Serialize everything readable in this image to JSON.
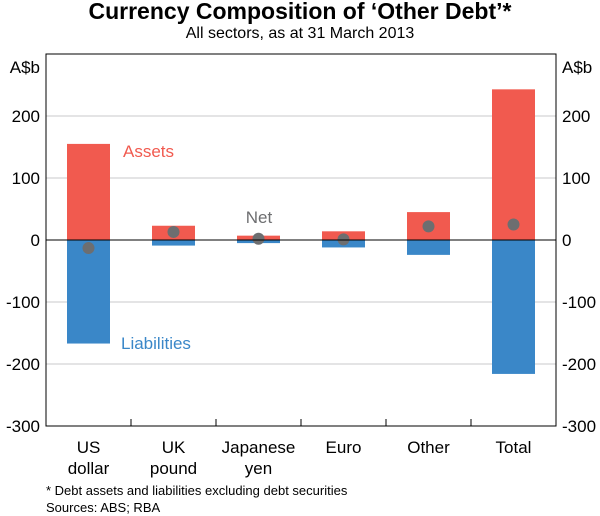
{
  "chart_data": {
    "type": "bar",
    "title": "Currency Composition of ‘Other Debt’*",
    "subtitle": "All sectors, as at 31 March 2013",
    "ylabel_left": "A$b",
    "ylabel_right": "A$b",
    "ylim": [
      -300,
      300
    ],
    "yticks": [
      -300,
      -200,
      -100,
      0,
      100,
      200
    ],
    "grid": true,
    "categories": [
      [
        "US",
        "dollar"
      ],
      [
        "UK",
        "pound"
      ],
      [
        "Japanese",
        "yen"
      ],
      [
        "Euro"
      ],
      [
        "Other"
      ],
      [
        "Total"
      ]
    ],
    "series": [
      {
        "name": "Assets",
        "type": "bar",
        "color": "#f15a4f",
        "values": [
          155,
          23,
          7,
          14,
          45,
          243
        ]
      },
      {
        "name": "Liabilities",
        "type": "bar",
        "color": "#3a87c8",
        "values": [
          -167,
          -9,
          -5,
          -12,
          -24,
          -216
        ]
      },
      {
        "name": "Net",
        "type": "dot",
        "color": "#6d6e70",
        "values": [
          -13,
          13,
          2,
          1,
          22,
          25
        ]
      }
    ]
  },
  "notes": {
    "footnote": "*     Debt assets and liabilities excluding debt securities",
    "sources": "Sources: ABS; RBA"
  }
}
